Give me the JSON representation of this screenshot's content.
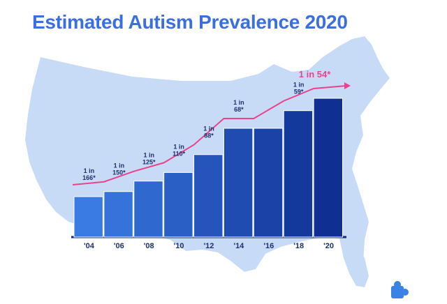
{
  "title": "Estimated Autism Prevalence 2020",
  "colors": {
    "title": "#3b6fe0",
    "map": "#c7dbf7",
    "bar_light": "#3a7be3",
    "bar_dark": "#0f2f93",
    "trend": "#e8438c",
    "text": "#1e2f6b",
    "logo": "#3a82e6"
  },
  "icons": {
    "logo": "puzzle-piece-icon"
  },
  "chart_data": {
    "type": "bar",
    "title": "Estimated Autism Prevalence 2020",
    "xlabel": "",
    "ylabel": "",
    "categories": [
      "'04",
      "'06",
      "'08",
      "'10",
      "'12",
      "'14",
      "'16",
      "'18",
      "'20"
    ],
    "values": [
      166,
      150,
      125,
      110,
      88,
      68,
      68,
      59,
      54
    ],
    "value_unit": "1 in N",
    "label_lines": [
      [
        "1 in",
        "166*"
      ],
      [
        "1 in",
        "150*"
      ],
      [
        "1 in",
        "125*"
      ],
      [
        "1 in",
        "110*"
      ],
      [
        "1 in",
        "88*"
      ],
      [
        "1 in",
        "68*"
      ],
      [],
      [
        "1 in",
        "59*"
      ],
      [
        "1 in 54*"
      ]
    ],
    "grid": false,
    "legend": "none"
  }
}
